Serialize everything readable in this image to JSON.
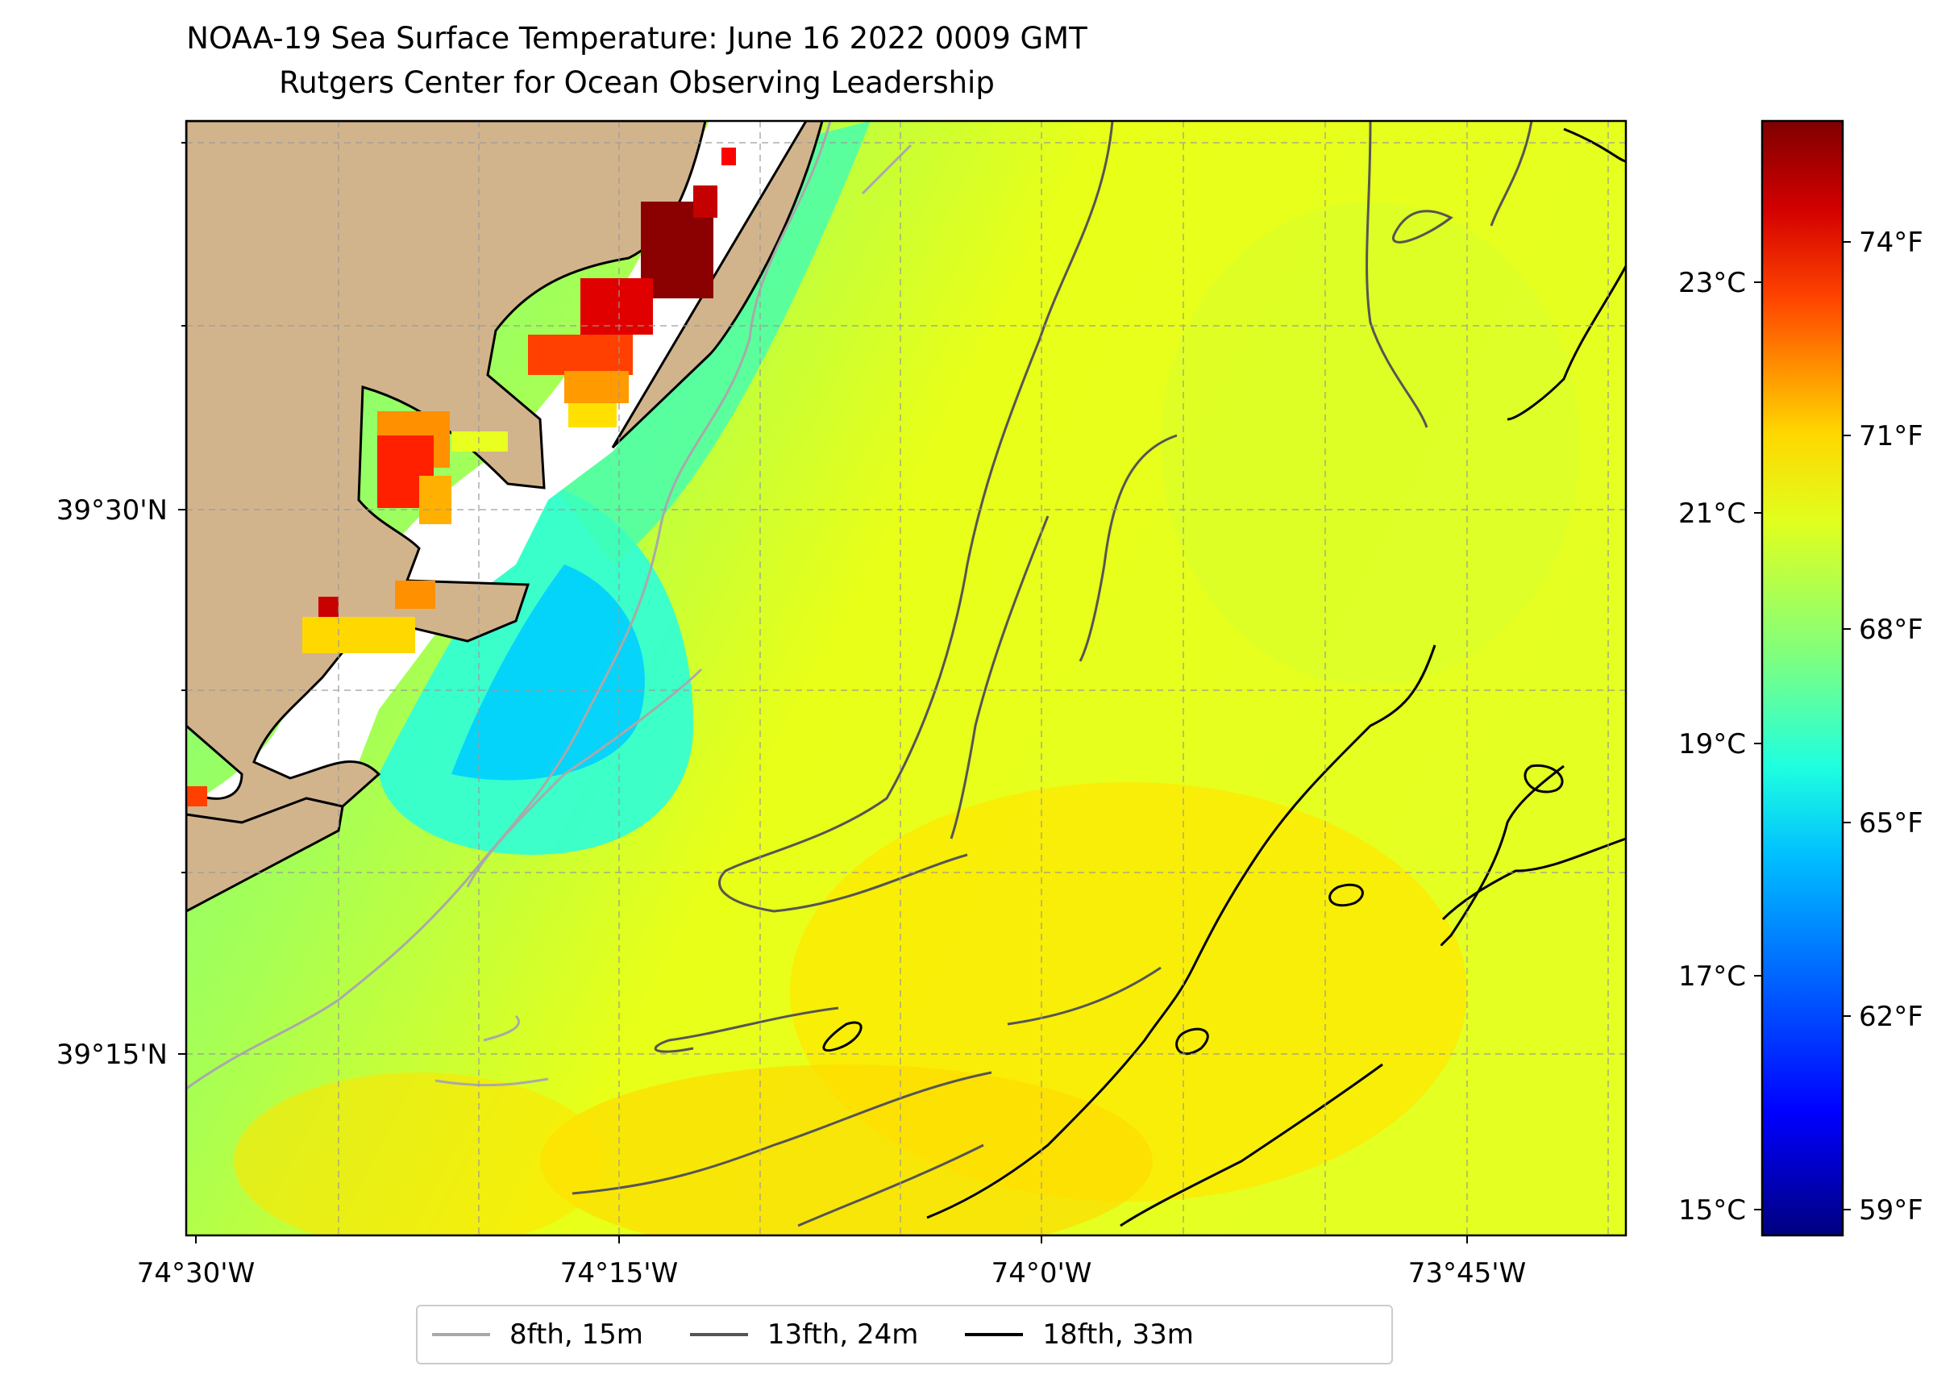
{
  "title": {
    "line1": "NOAA-19 Sea Surface Temperature: June 16 2022 0009 GMT",
    "line2": "Rutgers Center for Ocean Observing Leadership"
  },
  "map": {
    "x_ticks": [
      "74°30'W",
      "74°15'W",
      "74°0'W",
      "73°45'W"
    ],
    "y_ticks": [
      "39°30'N",
      "39°15'N"
    ],
    "land_color": "#d2b48c",
    "grid": true,
    "grid_style": "dashed gray"
  },
  "colorbar": {
    "celsius_ticks": [
      "23°C",
      "21°C",
      "19°C",
      "17°C",
      "15°C"
    ],
    "fahrenheit_ticks": [
      "74°F",
      "71°F",
      "68°F",
      "65°F",
      "62°F",
      "59°F"
    ],
    "colormap": "jet",
    "colors": [
      "#00007f",
      "#0000ff",
      "#00bfff",
      "#1effe0",
      "#7fff7f",
      "#e0ff1e",
      "#ffd700",
      "#ff4500",
      "#d40000",
      "#7f0000"
    ]
  },
  "legend": {
    "items": [
      {
        "label": "8fth, 15m",
        "color": "#a9a9a9"
      },
      {
        "label": "13fth, 24m",
        "color": "#555555"
      },
      {
        "label": "18fth, 33m",
        "color": "#000000"
      }
    ]
  }
}
